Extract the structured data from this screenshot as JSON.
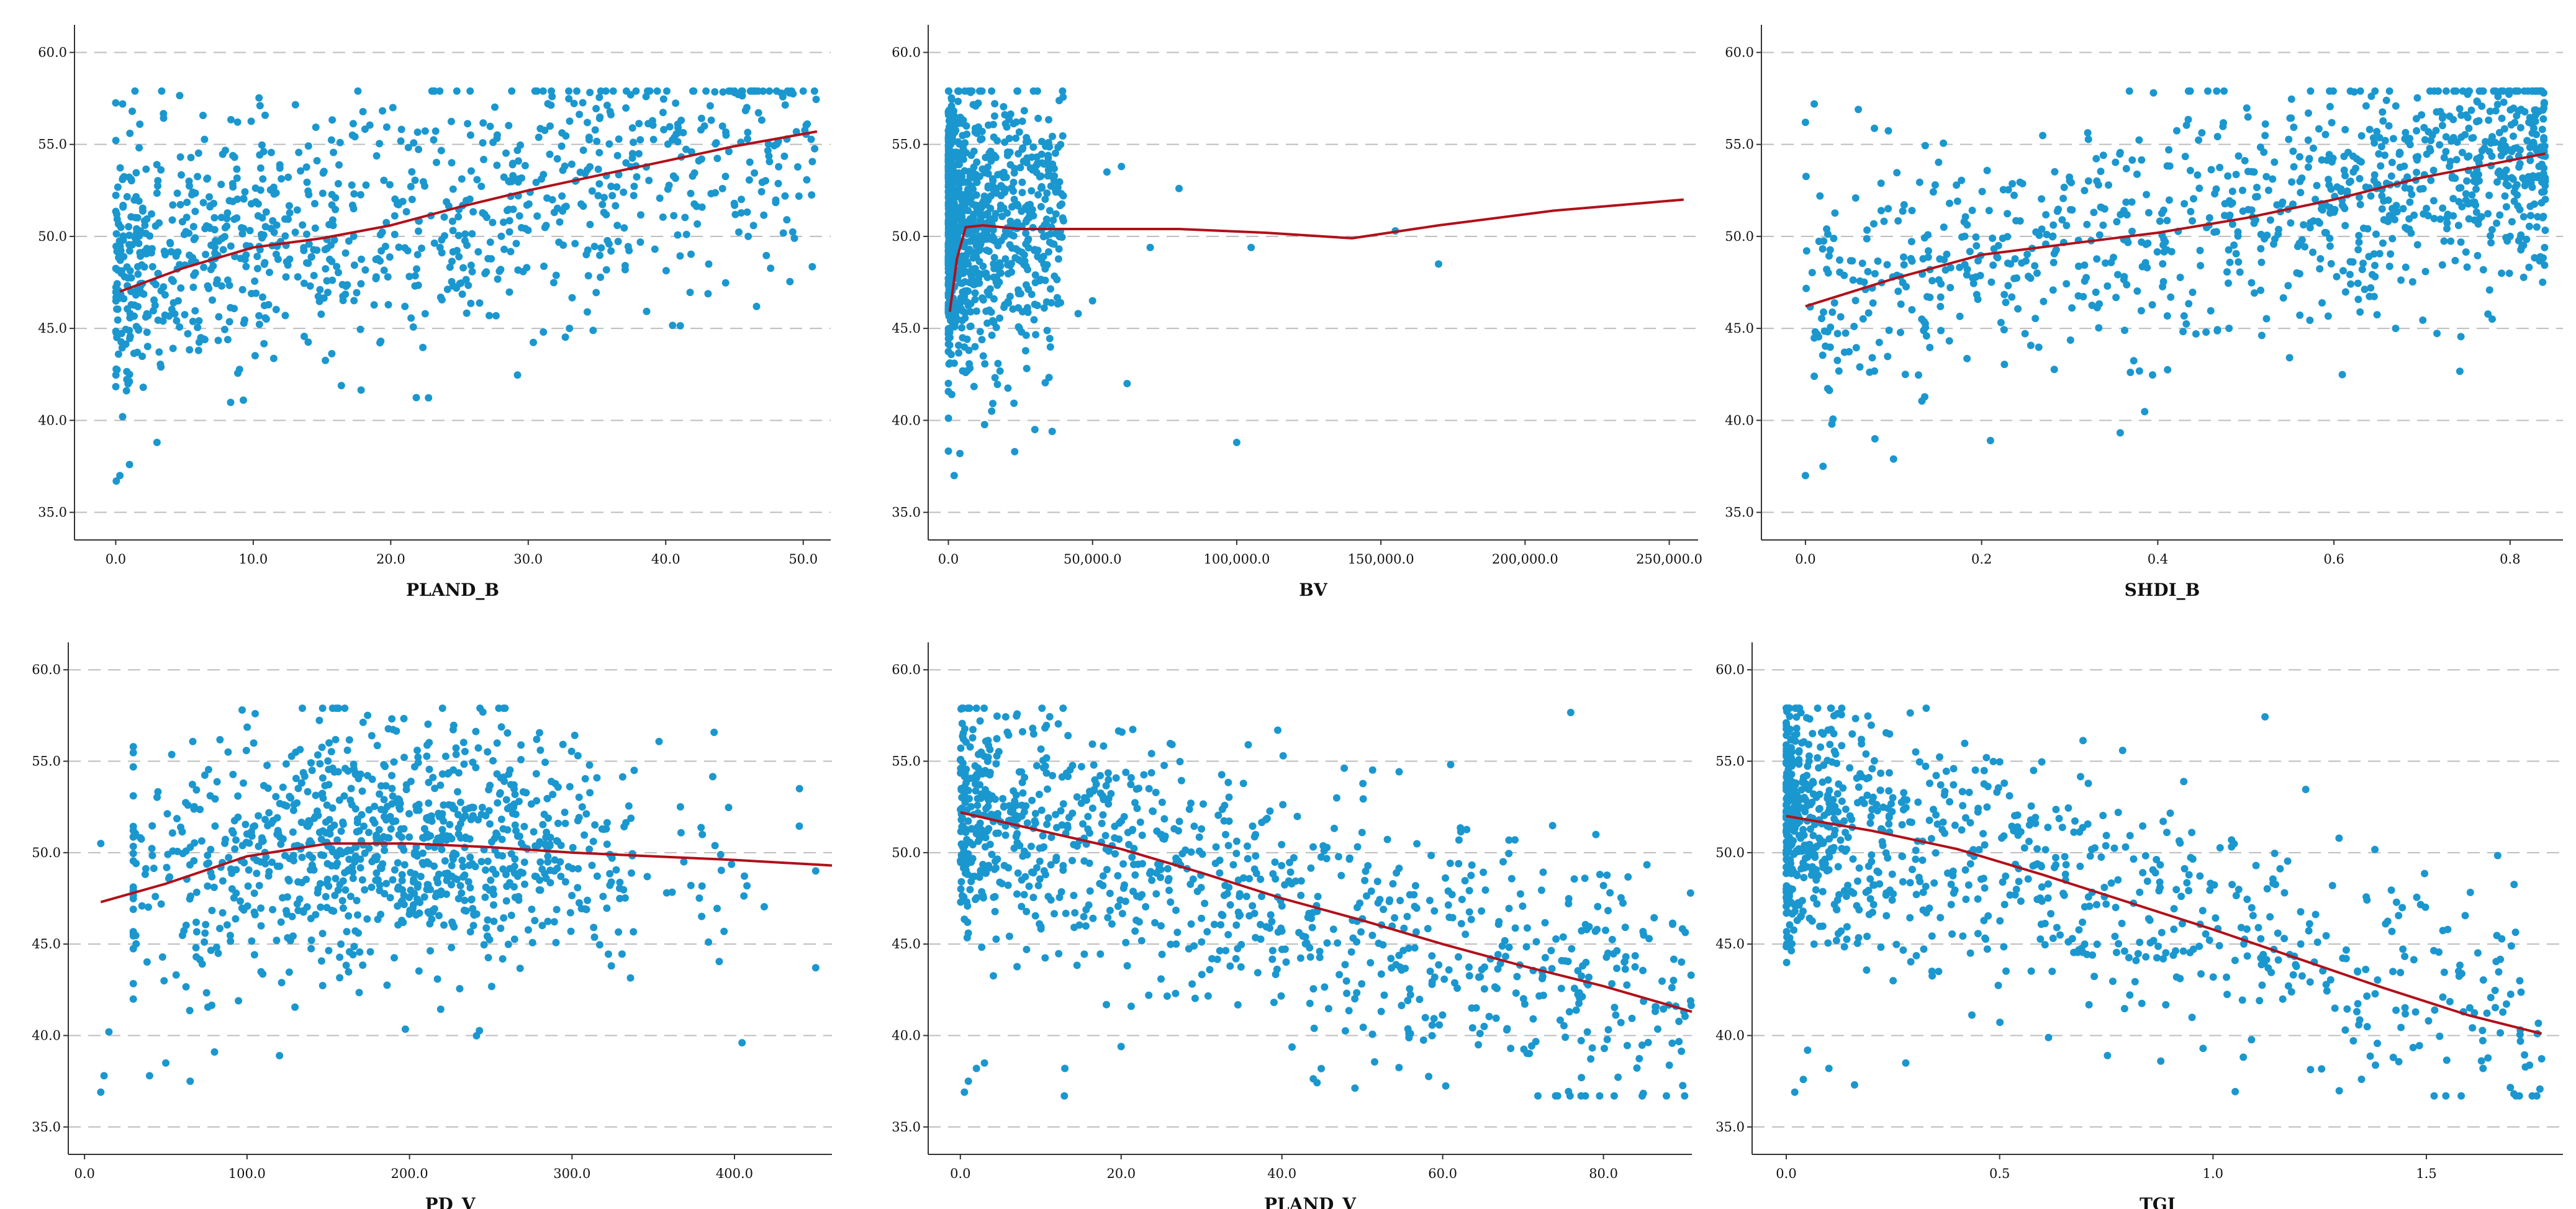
{
  "colors": {
    "point": "#1b97cf",
    "fit": "#b1101a",
    "grid": "#bdbdbd",
    "axis": "#333333"
  },
  "chart_data": [
    {
      "type": "scatter",
      "title": "",
      "xlabel": "PLAND_B",
      "ylabel": "",
      "xlim": [
        -3,
        52
      ],
      "ylim": [
        33.5,
        61.5
      ],
      "xticks": [
        0,
        10,
        20,
        30,
        40,
        50
      ],
      "xtick_labels": [
        "0.0",
        "10.0",
        "20.0",
        "30.0",
        "40.0",
        "50.0"
      ],
      "yticks": [
        35,
        40,
        45,
        50,
        55,
        60
      ],
      "ytick_labels": [
        "35.0",
        "40.0",
        "45.0",
        "50.0",
        "55.0",
        "60.0"
      ],
      "fit_line": [
        [
          0.3,
          47.0
        ],
        [
          5,
          48.3
        ],
        [
          10,
          49.4
        ],
        [
          15,
          49.9
        ],
        [
          20,
          50.6
        ],
        [
          25,
          51.6
        ],
        [
          30,
          52.5
        ],
        [
          35,
          53.3
        ],
        [
          40,
          54.1
        ],
        [
          45,
          54.9
        ],
        [
          51,
          55.7
        ]
      ],
      "cloud": {
        "x_min": 0,
        "x_max": 51,
        "x_dist": "skew",
        "curve": [
          [
            0,
            48
          ],
          [
            10,
            49.4
          ],
          [
            20,
            50.6
          ],
          [
            30,
            52.3
          ],
          [
            40,
            54
          ],
          [
            51,
            55.5
          ]
        ],
        "spread": 3.4,
        "n": 1000
      },
      "outliers": [
        [
          0.3,
          37.0
        ],
        [
          1,
          37.6
        ],
        [
          0.5,
          40.2
        ],
        [
          3,
          38.8
        ],
        [
          1,
          42.5
        ],
        [
          2,
          41.8
        ],
        [
          0.2,
          43.6
        ],
        [
          1.5,
          45.1
        ],
        [
          33,
          45.0
        ],
        [
          46,
          50.0
        ],
        [
          49,
          57.8
        ],
        [
          0.5,
          57.2
        ],
        [
          1.2,
          56.8
        ]
      ]
    },
    {
      "type": "scatter",
      "title": "",
      "xlabel": "BV",
      "ylabel": "",
      "xlim": [
        -7000,
        260000
      ],
      "ylim": [
        33.5,
        61.5
      ],
      "xticks": [
        0,
        50000,
        100000,
        150000,
        200000,
        250000
      ],
      "xtick_labels": [
        "0.0",
        "50,000.0",
        "100,000.0",
        "150,000.0",
        "200,000.0",
        "250,000.0"
      ],
      "yticks": [
        35,
        40,
        45,
        50,
        55,
        60
      ],
      "ytick_labels": [
        "35.0",
        "40.0",
        "45.0",
        "50.0",
        "55.0",
        "60.0"
      ],
      "fit_line": [
        [
          500,
          45.9
        ],
        [
          3000,
          48.8
        ],
        [
          6000,
          50.5
        ],
        [
          12000,
          50.6
        ],
        [
          25000,
          50.4
        ],
        [
          50000,
          50.4
        ],
        [
          80000,
          50.4
        ],
        [
          110000,
          50.2
        ],
        [
          140000,
          49.9
        ],
        [
          170000,
          50.6
        ],
        [
          210000,
          51.4
        ],
        [
          255000,
          52.0
        ]
      ],
      "cloud": {
        "x_min": 0,
        "x_max": 40000,
        "x_dist": "heavyskew",
        "curve": [
          [
            0,
            50.3
          ],
          [
            40000,
            50.4
          ]
        ],
        "spread": 3.6,
        "n": 1000
      },
      "outliers": [
        [
          2000,
          37.0
        ],
        [
          4000,
          38.2
        ],
        [
          15000,
          40.5
        ],
        [
          23000,
          38.3
        ],
        [
          30000,
          39.5
        ],
        [
          36000,
          39.4
        ],
        [
          55000,
          53.5
        ],
        [
          60000,
          53.8
        ],
        [
          62000,
          42.0
        ],
        [
          70000,
          49.4
        ],
        [
          80000,
          52.6
        ],
        [
          100000,
          38.8
        ],
        [
          105000,
          49.4
        ],
        [
          155000,
          50.3
        ],
        [
          170000,
          48.5
        ],
        [
          45000,
          45.8
        ],
        [
          50000,
          46.5
        ]
      ]
    },
    {
      "type": "scatter",
      "title": "",
      "xlabel": "SHDI_B",
      "ylabel": "",
      "xlim": [
        -0.05,
        0.86
      ],
      "ylim": [
        33.5,
        61.5
      ],
      "xticks": [
        0,
        0.2,
        0.4,
        0.6,
        0.8
      ],
      "xtick_labels": [
        "0.0",
        "0.2",
        "0.4",
        "0.6",
        "0.8"
      ],
      "yticks": [
        35,
        40,
        45,
        50,
        55,
        60
      ],
      "ytick_labels": [
        "35.0",
        "40.0",
        "45.0",
        "50.0",
        "55.0",
        "60.0"
      ],
      "fit_line": [
        [
          0.0,
          46.2
        ],
        [
          0.1,
          47.7
        ],
        [
          0.2,
          49.0
        ],
        [
          0.3,
          49.6
        ],
        [
          0.4,
          50.2
        ],
        [
          0.5,
          51.0
        ],
        [
          0.6,
          52.0
        ],
        [
          0.7,
          53.2
        ],
        [
          0.84,
          54.5
        ]
      ],
      "cloud": {
        "x_min": 0,
        "x_max": 0.84,
        "x_dist": "leftskew",
        "curve": [
          [
            0,
            46.5
          ],
          [
            0.2,
            49.0
          ],
          [
            0.4,
            50.2
          ],
          [
            0.6,
            52
          ],
          [
            0.84,
            54.5
          ]
        ],
        "spread": 3.2,
        "n": 1000
      },
      "outliers": [
        [
          0.0,
          37.0
        ],
        [
          0.02,
          37.5
        ],
        [
          0.03,
          39.8
        ],
        [
          0.01,
          42.4
        ],
        [
          0.1,
          37.9
        ],
        [
          0.21,
          38.9
        ],
        [
          0.67,
          45.0
        ],
        [
          0.8,
          50.0
        ],
        [
          0.0,
          56.2
        ],
        [
          0.01,
          57.2
        ],
        [
          0.06,
          56.9
        ]
      ]
    },
    {
      "type": "scatter",
      "title": "",
      "xlabel": "PD_V",
      "ylabel": "",
      "xlim": [
        -10,
        460
      ],
      "ylim": [
        33.5,
        61.5
      ],
      "xticks": [
        0,
        100,
        200,
        300,
        400
      ],
      "xtick_labels": [
        "0.0",
        "100.0",
        "200.0",
        "300.0",
        "400.0"
      ],
      "yticks": [
        35,
        40,
        45,
        50,
        55,
        60
      ],
      "ytick_labels": [
        "35.0",
        "40.0",
        "45.0",
        "50.0",
        "55.0",
        "60.0"
      ],
      "fit_line": [
        [
          10,
          47.3
        ],
        [
          50,
          48.3
        ],
        [
          100,
          49.8
        ],
        [
          150,
          50.5
        ],
        [
          200,
          50.5
        ],
        [
          250,
          50.3
        ],
        [
          300,
          50.0
        ],
        [
          350,
          49.8
        ],
        [
          400,
          49.6
        ],
        [
          460,
          49.3
        ]
      ],
      "cloud": {
        "x_min": 30,
        "x_max": 450,
        "x_dist": "bell",
        "curve": [
          [
            30,
            48.5
          ],
          [
            100,
            49.8
          ],
          [
            200,
            50.5
          ],
          [
            300,
            50.0
          ],
          [
            450,
            49.4
          ]
        ],
        "spread": 3.3,
        "n": 1000
      },
      "outliers": [
        [
          10,
          36.9
        ],
        [
          12,
          37.8
        ],
        [
          15,
          40.2
        ],
        [
          40,
          37.8
        ],
        [
          50,
          38.5
        ],
        [
          65,
          37.5
        ],
        [
          80,
          39.1
        ],
        [
          120,
          38.9
        ],
        [
          10,
          50.5
        ],
        [
          97,
          57.8
        ],
        [
          105,
          57.6
        ],
        [
          440,
          53.5
        ],
        [
          450,
          49.0
        ]
      ]
    },
    {
      "type": "scatter",
      "title": "",
      "xlabel": "PLAND_V",
      "ylabel": "",
      "xlim": [
        -4,
        91
      ],
      "ylim": [
        33.5,
        61.5
      ],
      "xticks": [
        0,
        20,
        40,
        60,
        80
      ],
      "xtick_labels": [
        "0.0",
        "20.0",
        "40.0",
        "60.0",
        "80.0"
      ],
      "yticks": [
        35,
        40,
        45,
        50,
        55,
        60
      ],
      "ytick_labels": [
        "35.0",
        "40.0",
        "45.0",
        "50.0",
        "55.0",
        "60.0"
      ],
      "fit_line": [
        [
          0,
          52.2
        ],
        [
          10,
          51.2
        ],
        [
          20,
          50.2
        ],
        [
          30,
          48.9
        ],
        [
          40,
          47.5
        ],
        [
          50,
          46.3
        ],
        [
          60,
          45.0
        ],
        [
          70,
          43.8
        ],
        [
          80,
          42.7
        ],
        [
          91,
          41.3
        ]
      ],
      "cloud": {
        "x_min": 0,
        "x_max": 91,
        "x_dist": "skew",
        "curve": [
          [
            0,
            52.2
          ],
          [
            20,
            50.2
          ],
          [
            40,
            47.5
          ],
          [
            60,
            45
          ],
          [
            91,
            41.3
          ]
        ],
        "spread": 3.4,
        "n": 1000
      },
      "outliers": [
        [
          0.5,
          36.9
        ],
        [
          1,
          37.5
        ],
        [
          2,
          38.2
        ],
        [
          3,
          38.5
        ],
        [
          13,
          38.2
        ],
        [
          20,
          39.4
        ],
        [
          9,
          56.8
        ],
        [
          78,
          40.2
        ],
        [
          79,
          45.7
        ],
        [
          80,
          48.2
        ],
        [
          89,
          41.6
        ],
        [
          90,
          41.3
        ]
      ]
    },
    {
      "type": "scatter",
      "title": "",
      "xlabel": "TGI",
      "ylabel": "",
      "xlim": [
        -0.08,
        1.82
      ],
      "ylim": [
        33.5,
        61.5
      ],
      "xticks": [
        0,
        0.5,
        1.0,
        1.5
      ],
      "xtick_labels": [
        "0.0",
        "0.5",
        "1.0",
        "1.5"
      ],
      "yticks": [
        35,
        40,
        45,
        50,
        55,
        60
      ],
      "ytick_labels": [
        "35.0",
        "40.0",
        "45.0",
        "50.0",
        "55.0",
        "60.0"
      ],
      "fit_line": [
        [
          0,
          52.0
        ],
        [
          0.2,
          51.2
        ],
        [
          0.4,
          50.2
        ],
        [
          0.6,
          48.8
        ],
        [
          0.8,
          47.3
        ],
        [
          1.0,
          45.8
        ],
        [
          1.2,
          44.2
        ],
        [
          1.4,
          42.6
        ],
        [
          1.6,
          41.1
        ],
        [
          1.77,
          40.1
        ]
      ],
      "cloud": {
        "x_min": 0,
        "x_max": 1.77,
        "x_dist": "heavyskew",
        "curve": [
          [
            0,
            52.0
          ],
          [
            0.4,
            50.2
          ],
          [
            0.8,
            47.3
          ],
          [
            1.2,
            44.2
          ],
          [
            1.77,
            40.1
          ]
        ],
        "spread": 3.3,
        "n": 1000
      },
      "outliers": [
        [
          0.02,
          36.9
        ],
        [
          0.04,
          37.6
        ],
        [
          0.05,
          39.2
        ],
        [
          0.1,
          38.2
        ],
        [
          0.16,
          37.3
        ],
        [
          0.28,
          38.5
        ],
        [
          0.12,
          57.6
        ],
        [
          1.28,
          48.2
        ],
        [
          1.55,
          45.8
        ],
        [
          1.72,
          40.3
        ],
        [
          1.76,
          40.1
        ],
        [
          1.31,
          40.3
        ]
      ]
    }
  ]
}
